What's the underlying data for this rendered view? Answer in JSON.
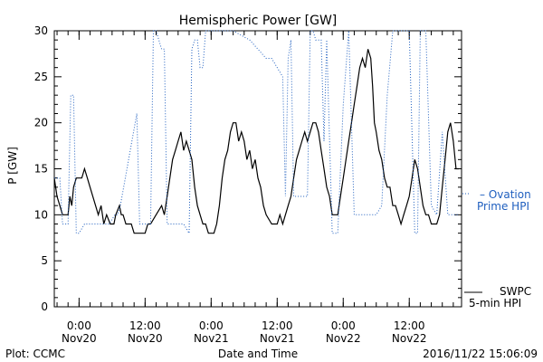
{
  "chart_data": {
    "type": "line",
    "title": "Hemispheric Power [GW]",
    "ylabel": "P [GW]",
    "xlabel": "Date and Time",
    "ylim": [
      0,
      30
    ],
    "yticks": [
      0,
      5,
      10,
      15,
      20,
      25,
      30
    ],
    "xlim": [
      "2016-11-19 19:30",
      "2016-11-22 21:30"
    ],
    "xticks": [
      {
        "time": "2016-11-20 00:00",
        "line1": "0:00",
        "line2": "Nov20"
      },
      {
        "time": "2016-11-20 12:00",
        "line1": "12:00",
        "line2": "Nov20"
      },
      {
        "time": "2016-11-21 00:00",
        "line1": "0:00",
        "line2": "Nov21"
      },
      {
        "time": "2016-11-21 12:00",
        "line1": "12:00",
        "line2": "Nov21"
      },
      {
        "time": "2016-11-22 00:00",
        "line1": "0:00",
        "line2": "Nov22"
      },
      {
        "time": "2016-11-22 12:00",
        "line1": "12:00",
        "line2": "Nov22"
      }
    ],
    "grid": false,
    "legend_placement": "right",
    "series": [
      {
        "name": "SWPC 5-min HPI",
        "legend_lines": [
          "SWPC",
          "5-min HPI"
        ],
        "color": "#000000",
        "style": "solid",
        "points": [
          [
            "2016-11-19 19:30",
            14
          ],
          [
            "2016-11-19 20:00",
            12
          ],
          [
            "2016-11-19 20:30",
            11
          ],
          [
            "2016-11-19 21:00",
            10
          ],
          [
            "2016-11-19 22:00",
            10
          ],
          [
            "2016-11-19 22:20",
            12
          ],
          [
            "2016-11-19 22:40",
            11
          ],
          [
            "2016-11-19 23:00",
            13
          ],
          [
            "2016-11-19 23:30",
            14
          ],
          [
            "2016-11-20 00:30",
            14
          ],
          [
            "2016-11-20 01:00",
            15
          ],
          [
            "2016-11-20 01:30",
            14
          ],
          [
            "2016-11-20 02:00",
            13
          ],
          [
            "2016-11-20 03:00",
            11
          ],
          [
            "2016-11-20 03:30",
            10
          ],
          [
            "2016-11-20 04:00",
            11
          ],
          [
            "2016-11-20 04:30",
            9
          ],
          [
            "2016-11-20 05:00",
            10
          ],
          [
            "2016-11-20 05:40",
            9
          ],
          [
            "2016-11-20 06:20",
            9
          ],
          [
            "2016-11-20 06:40",
            10
          ],
          [
            "2016-11-20 07:20",
            11
          ],
          [
            "2016-11-20 07:40",
            10
          ],
          [
            "2016-11-20 08:00",
            10
          ],
          [
            "2016-11-20 08:30",
            9
          ],
          [
            "2016-11-20 09:30",
            9
          ],
          [
            "2016-11-20 10:00",
            8
          ],
          [
            "2016-11-20 11:30",
            8
          ],
          [
            "2016-11-20 12:00",
            8
          ],
          [
            "2016-11-20 12:30",
            9
          ],
          [
            "2016-11-20 13:00",
            9
          ],
          [
            "2016-11-20 14:00",
            10
          ],
          [
            "2016-11-20 15:00",
            11
          ],
          [
            "2016-11-20 15:30",
            10
          ],
          [
            "2016-11-20 16:00",
            12
          ],
          [
            "2016-11-20 16:30",
            14
          ],
          [
            "2016-11-20 17:00",
            16
          ],
          [
            "2016-11-20 17:30",
            17
          ],
          [
            "2016-11-20 18:00",
            18
          ],
          [
            "2016-11-20 18:30",
            19
          ],
          [
            "2016-11-20 19:00",
            17
          ],
          [
            "2016-11-20 19:30",
            18
          ],
          [
            "2016-11-20 20:00",
            17
          ],
          [
            "2016-11-20 20:30",
            16
          ],
          [
            "2016-11-20 21:00",
            13
          ],
          [
            "2016-11-20 21:30",
            11
          ],
          [
            "2016-11-20 22:00",
            10
          ],
          [
            "2016-11-20 22:30",
            9
          ],
          [
            "2016-11-20 23:00",
            9
          ],
          [
            "2016-11-20 23:30",
            8
          ],
          [
            "2016-11-21 00:30",
            8
          ],
          [
            "2016-11-21 01:00",
            9
          ],
          [
            "2016-11-21 01:30",
            11
          ],
          [
            "2016-11-21 02:00",
            14
          ],
          [
            "2016-11-21 02:30",
            16
          ],
          [
            "2016-11-21 03:00",
            17
          ],
          [
            "2016-11-21 03:30",
            19
          ],
          [
            "2016-11-21 04:00",
            20
          ],
          [
            "2016-11-21 04:30",
            20
          ],
          [
            "2016-11-21 05:00",
            18
          ],
          [
            "2016-11-21 05:30",
            19
          ],
          [
            "2016-11-21 06:00",
            18
          ],
          [
            "2016-11-21 06:30",
            16
          ],
          [
            "2016-11-21 07:00",
            17
          ],
          [
            "2016-11-21 07:30",
            15
          ],
          [
            "2016-11-21 08:00",
            16
          ],
          [
            "2016-11-21 08:30",
            14
          ],
          [
            "2016-11-21 09:00",
            13
          ],
          [
            "2016-11-21 09:30",
            11
          ],
          [
            "2016-11-21 10:00",
            10
          ],
          [
            "2016-11-21 11:00",
            9
          ],
          [
            "2016-11-21 12:00",
            9
          ],
          [
            "2016-11-21 12:30",
            10
          ],
          [
            "2016-11-21 13:00",
            9
          ],
          [
            "2016-11-21 13:30",
            10
          ],
          [
            "2016-11-21 14:00",
            11
          ],
          [
            "2016-11-21 14:30",
            12
          ],
          [
            "2016-11-21 15:00",
            14
          ],
          [
            "2016-11-21 15:30",
            16
          ],
          [
            "2016-11-21 16:00",
            17
          ],
          [
            "2016-11-21 16:30",
            18
          ],
          [
            "2016-11-21 17:00",
            19
          ],
          [
            "2016-11-21 17:30",
            18
          ],
          [
            "2016-11-21 18:00",
            19
          ],
          [
            "2016-11-21 18:30",
            20
          ],
          [
            "2016-11-21 19:00",
            20
          ],
          [
            "2016-11-21 19:30",
            19
          ],
          [
            "2016-11-21 20:00",
            17
          ],
          [
            "2016-11-21 20:30",
            15
          ],
          [
            "2016-11-21 21:00",
            13
          ],
          [
            "2016-11-21 21:30",
            12
          ],
          [
            "2016-11-21 22:00",
            10
          ],
          [
            "2016-11-21 23:00",
            10
          ],
          [
            "2016-11-21 23:30",
            12
          ],
          [
            "2016-11-22 00:00",
            14
          ],
          [
            "2016-11-22 00:30",
            16
          ],
          [
            "2016-11-22 01:00",
            18
          ],
          [
            "2016-11-22 01:30",
            20
          ],
          [
            "2016-11-22 02:00",
            22
          ],
          [
            "2016-11-22 02:30",
            24
          ],
          [
            "2016-11-22 03:00",
            26
          ],
          [
            "2016-11-22 03:30",
            27
          ],
          [
            "2016-11-22 04:00",
            26
          ],
          [
            "2016-11-22 04:30",
            28
          ],
          [
            "2016-11-22 05:00",
            27
          ],
          [
            "2016-11-22 05:20",
            24
          ],
          [
            "2016-11-22 05:40",
            20
          ],
          [
            "2016-11-22 06:00",
            19
          ],
          [
            "2016-11-22 06:30",
            17
          ],
          [
            "2016-11-22 07:00",
            16
          ],
          [
            "2016-11-22 07:30",
            14
          ],
          [
            "2016-11-22 08:00",
            13
          ],
          [
            "2016-11-22 08:30",
            13
          ],
          [
            "2016-11-22 09:00",
            11
          ],
          [
            "2016-11-22 09:30",
            11
          ],
          [
            "2016-11-22 10:00",
            10
          ],
          [
            "2016-11-22 10:30",
            9
          ],
          [
            "2016-11-22 11:00",
            10
          ],
          [
            "2016-11-22 11:30",
            11
          ],
          [
            "2016-11-22 12:00",
            12
          ],
          [
            "2016-11-22 12:30",
            14
          ],
          [
            "2016-11-22 13:00",
            16
          ],
          [
            "2016-11-22 13:30",
            15
          ],
          [
            "2016-11-22 14:00",
            13
          ],
          [
            "2016-11-22 14:30",
            11
          ],
          [
            "2016-11-22 15:00",
            10
          ],
          [
            "2016-11-22 15:30",
            10
          ],
          [
            "2016-11-22 16:00",
            9
          ],
          [
            "2016-11-22 17:00",
            9
          ],
          [
            "2016-11-22 17:30",
            10
          ],
          [
            "2016-11-22 18:00",
            13
          ],
          [
            "2016-11-22 18:30",
            16
          ],
          [
            "2016-11-22 19:00",
            19
          ],
          [
            "2016-11-22 19:30",
            20
          ],
          [
            "2016-11-22 20:00",
            18
          ],
          [
            "2016-11-22 20:30",
            15
          ],
          [
            "2016-11-22 21:00",
            15
          ]
        ]
      },
      {
        "name": "Ovation Prime HPI",
        "legend_lines": [
          "– Ovation",
          "Prime HPI"
        ],
        "color": "#1f5fbf",
        "style": "dotted",
        "points": [
          [
            "2016-11-19 19:30",
            14
          ],
          [
            "2016-11-19 20:30",
            14
          ],
          [
            "2016-11-19 21:00",
            9
          ],
          [
            "2016-11-19 22:00",
            9
          ],
          [
            "2016-11-19 22:30",
            23
          ],
          [
            "2016-11-19 23:00",
            23
          ],
          [
            "2016-11-19 23:30",
            8
          ],
          [
            "2016-11-20 00:00",
            8
          ],
          [
            "2016-11-20 01:00",
            9
          ],
          [
            "2016-11-20 04:30",
            9
          ],
          [
            "2016-11-20 05:30",
            9
          ],
          [
            "2016-11-20 06:30",
            10
          ],
          [
            "2016-11-20 07:00",
            10
          ],
          [
            "2016-11-20 07:30",
            11
          ],
          [
            "2016-11-20 10:30",
            21
          ],
          [
            "2016-11-20 11:00",
            9
          ],
          [
            "2016-11-20 13:00",
            9
          ],
          [
            "2016-11-20 13:30",
            31
          ],
          [
            "2016-11-20 14:00",
            31
          ],
          [
            "2016-11-20 15:00",
            28
          ],
          [
            "2016-11-20 15:30",
            28
          ],
          [
            "2016-11-20 16:00",
            9
          ],
          [
            "2016-11-20 19:00",
            9
          ],
          [
            "2016-11-20 20:00",
            8
          ],
          [
            "2016-11-20 20:30",
            28
          ],
          [
            "2016-11-20 21:00",
            29
          ],
          [
            "2016-11-20 21:30",
            29
          ],
          [
            "2016-11-20 22:00",
            26
          ],
          [
            "2016-11-20 22:30",
            26
          ],
          [
            "2016-11-20 23:00",
            31
          ],
          [
            "2016-11-21 03:00",
            31
          ],
          [
            "2016-11-21 04:00",
            30
          ],
          [
            "2016-11-21 07:00",
            29
          ],
          [
            "2016-11-21 10:00",
            27
          ],
          [
            "2016-11-21 11:00",
            27
          ],
          [
            "2016-11-21 12:00",
            26
          ],
          [
            "2016-11-21 13:00",
            25
          ],
          [
            "2016-11-21 13:30",
            12
          ],
          [
            "2016-11-21 14:00",
            27
          ],
          [
            "2016-11-21 14:30",
            29
          ],
          [
            "2016-11-21 15:00",
            12
          ],
          [
            "2016-11-21 17:30",
            12
          ],
          [
            "2016-11-21 18:00",
            30
          ],
          [
            "2016-11-21 18:30",
            31
          ],
          [
            "2016-11-21 19:00",
            29
          ],
          [
            "2016-11-21 20:00",
            29
          ],
          [
            "2016-11-21 20:30",
            18
          ],
          [
            "2016-11-21 21:00",
            29
          ],
          [
            "2016-11-21 22:00",
            8
          ],
          [
            "2016-11-21 23:00",
            8
          ],
          [
            "2016-11-22 00:00",
            22
          ],
          [
            "2016-11-22 01:00",
            30
          ],
          [
            "2016-11-22 02:00",
            10
          ],
          [
            "2016-11-22 06:00",
            10
          ],
          [
            "2016-11-22 07:00",
            11
          ],
          [
            "2016-11-22 08:00",
            23
          ],
          [
            "2016-11-22 09:00",
            31
          ],
          [
            "2016-11-22 12:00",
            31
          ],
          [
            "2016-11-22 13:00",
            8
          ],
          [
            "2016-11-22 13:30",
            8
          ],
          [
            "2016-11-22 14:00",
            31
          ],
          [
            "2016-11-22 15:00",
            31
          ],
          [
            "2016-11-22 16:00",
            11
          ],
          [
            "2016-11-22 17:00",
            10
          ],
          [
            "2016-11-22 18:00",
            19
          ],
          [
            "2016-11-22 19:00",
            10
          ],
          [
            "2016-11-22 20:00",
            10
          ],
          [
            "2016-11-22 21:00",
            10
          ]
        ]
      }
    ]
  },
  "footer": {
    "left": "Plot: CCMC",
    "center": "Date and Time",
    "right": "2016/11/22 15:06:09"
  },
  "colors": {
    "swpc": "#000000",
    "ovation": "#1f5fbf"
  }
}
